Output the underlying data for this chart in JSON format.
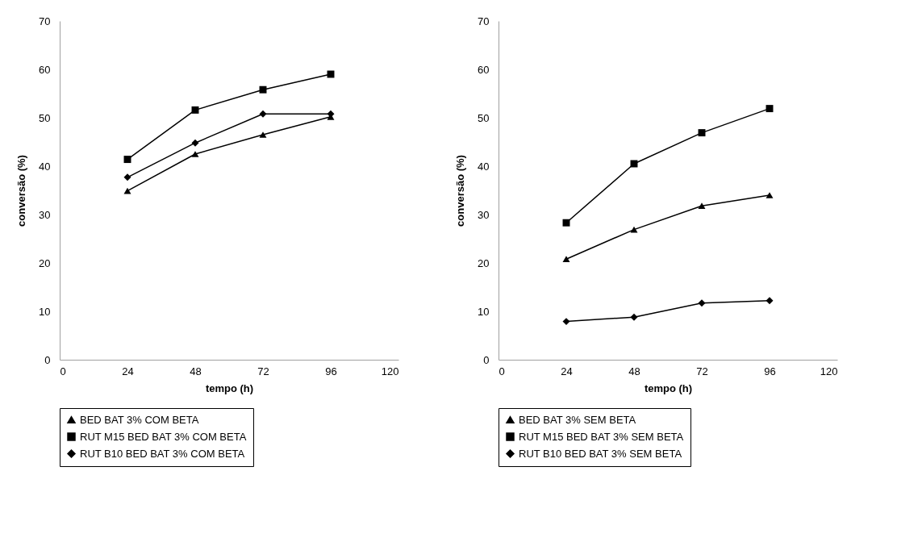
{
  "chart_data": [
    {
      "type": "line",
      "xlabel": "tempo (h)",
      "ylabel": "conversão (%)",
      "x": [
        24,
        48,
        72,
        96
      ],
      "xlim": [
        0,
        120
      ],
      "xticks": [
        0,
        24,
        48,
        72,
        96,
        120
      ],
      "ylim": [
        0,
        70
      ],
      "yticks": [
        0,
        10,
        20,
        30,
        40,
        50,
        60,
        70
      ],
      "grid": false,
      "legend": "bottom",
      "line_style": "solid",
      "series": [
        {
          "name": "BED BAT 3% COM BETA",
          "color": "#000000",
          "marker": "triangle",
          "values": [
            34.9,
            42.5,
            46.5,
            50.2
          ]
        },
        {
          "name": "RUT M15 BED BAT 3% COM BETA",
          "color": "#000000",
          "marker": "square",
          "values": [
            41.4,
            51.6,
            55.8,
            59.0
          ]
        },
        {
          "name": "RUT B10 BED BAT 3% COM BETA",
          "color": "#000000",
          "marker": "diamond",
          "values": [
            37.7,
            44.8,
            50.8,
            50.8
          ]
        }
      ]
    },
    {
      "type": "line",
      "xlabel": "tempo (h)",
      "ylabel": "conversão (%)",
      "x": [
        24,
        48,
        72,
        96
      ],
      "xlim": [
        0,
        120
      ],
      "xticks": [
        0,
        24,
        48,
        72,
        96,
        120
      ],
      "ylim": [
        0,
        70
      ],
      "yticks": [
        0,
        10,
        20,
        30,
        40,
        50,
        60,
        70
      ],
      "grid": false,
      "legend": "bottom",
      "line_style": "solid",
      "series": [
        {
          "name": "BED BAT 3% SEM BETA",
          "color": "#000000",
          "marker": "triangle",
          "values": [
            20.8,
            26.9,
            31.8,
            34.0
          ]
        },
        {
          "name": "RUT M15 BED BAT 3% SEM BETA",
          "color": "#000000",
          "marker": "square",
          "values": [
            28.3,
            40.5,
            46.9,
            51.9
          ]
        },
        {
          "name": "RUT B10 BED BAT 3% SEM BETA",
          "color": "#000000",
          "marker": "diamond",
          "values": [
            7.9,
            8.8,
            11.7,
            12.2
          ]
        }
      ]
    }
  ]
}
